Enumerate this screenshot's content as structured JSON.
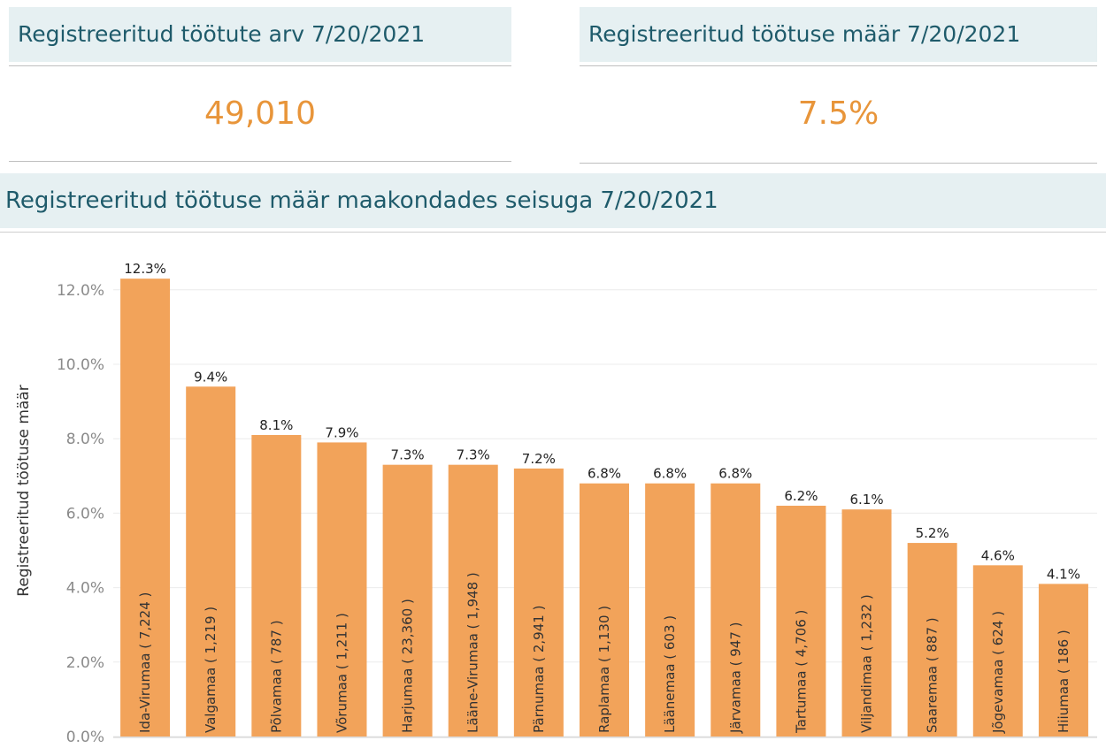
{
  "kpis": [
    {
      "title": "Registreeritud töötute arv 7/20/2021",
      "value": "49,010"
    },
    {
      "title": "Registreeritud töötuse määr 7/20/2021",
      "value": "7.5%"
    }
  ],
  "colors": {
    "accent": "#e8953a",
    "bar": "#f2a35a",
    "header_bg": "#e6f0f2",
    "header_text": "#1f5b6b"
  },
  "chart_data": {
    "type": "bar",
    "title": "Registreeritud töötuse määr maakondades seisuga 7/20/2021",
    "ylabel": "Registreeritud töötuse määr",
    "ylim": [
      0,
      13
    ],
    "yticks": [
      0,
      2,
      4,
      6,
      8,
      10,
      12
    ],
    "ytick_labels": [
      "0.0%",
      "2.0%",
      "4.0%",
      "6.0%",
      "8.0%",
      "10.0%",
      "12.0%"
    ],
    "grid": true,
    "categories": [
      "Ida-Virumaa ( 7,224 )",
      "Valgamaa ( 1,219 )",
      "Põlvamaa ( 787 )",
      "Võrumaa ( 1,211 )",
      "Harjumaa ( 23,360 )",
      "Lääne-Virumaa ( 1,948 )",
      "Pärnumaa ( 2,941 )",
      "Raplamaa ( 1,130 )",
      "Läänemaa ( 603 )",
      "Järvamaa ( 947 )",
      "Tartumaa ( 4,706 )",
      "Viljandimaa ( 1,232 )",
      "Saaremaa ( 887 )",
      "Jõgevamaa ( 624 )",
      "Hiiumaa ( 186 )"
    ],
    "values": [
      12.3,
      9.4,
      8.1,
      7.9,
      7.3,
      7.3,
      7.2,
      6.8,
      6.8,
      6.8,
      6.2,
      6.1,
      5.2,
      4.6,
      4.1
    ],
    "value_labels": [
      "12.3%",
      "9.4%",
      "8.1%",
      "7.9%",
      "7.3%",
      "7.3%",
      "7.2%",
      "6.8%",
      "6.8%",
      "6.8%",
      "6.2%",
      "6.1%",
      "5.2%",
      "4.6%",
      "4.1%"
    ]
  }
}
